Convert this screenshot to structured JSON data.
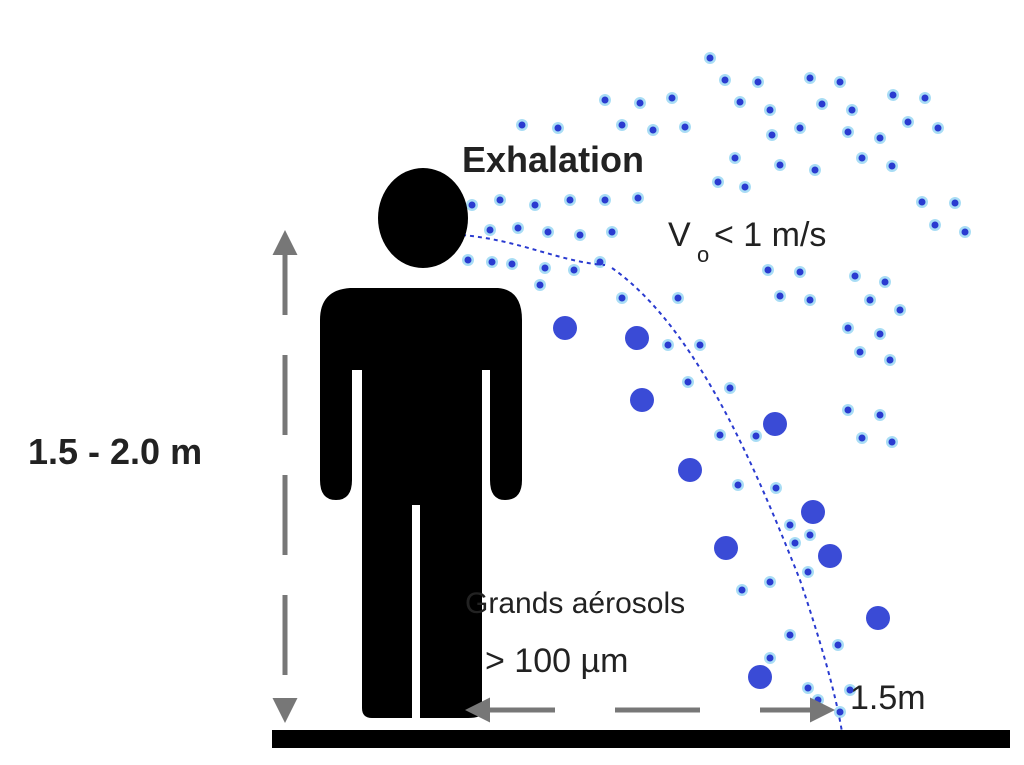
{
  "labels": {
    "exhalation": "Exhalation",
    "velocity_symbol": "V",
    "velocity_subscript": "o",
    "velocity_value": "< 1 m/s",
    "height": "1.5 - 2.0 m",
    "particles": "Grands aérosols",
    "particle_size": "> 100 µm",
    "distance": "1.5m"
  }
}
